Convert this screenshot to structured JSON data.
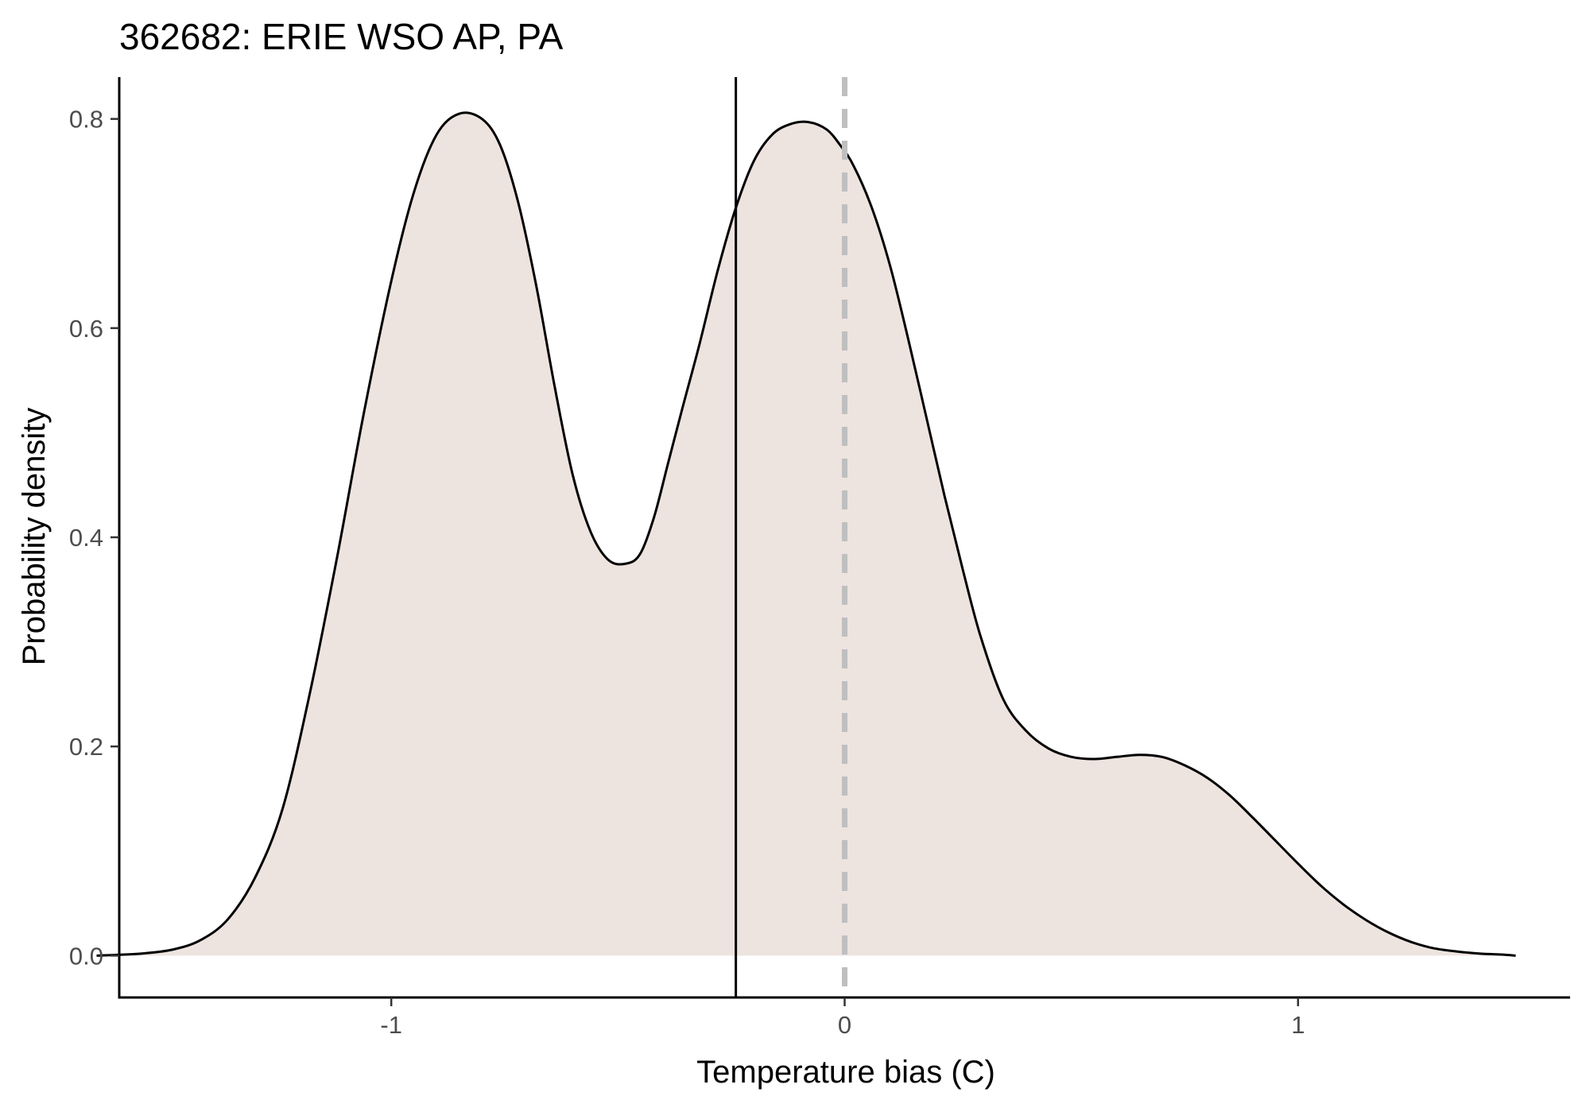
{
  "chart_data": {
    "type": "area",
    "title": "362682: ERIE WSO AP, PA",
    "xlabel": "Temperature bias (C)",
    "ylabel": "Probability density",
    "xlim": [
      -1.6,
      1.6
    ],
    "ylim": [
      -0.04,
      0.84
    ],
    "xticks": [
      -1,
      0,
      1
    ],
    "xtick_labels": [
      "-1",
      "0",
      "1"
    ],
    "yticks": [
      0.0,
      0.2,
      0.4,
      0.6,
      0.8
    ],
    "ytick_labels": [
      "0.0",
      "0.2",
      "0.4",
      "0.6",
      "0.8"
    ],
    "grid": false,
    "legend": "none",
    "series": [
      {
        "x": [
          -1.65,
          -1.55,
          -1.48,
          -1.42,
          -1.36,
          -1.3,
          -1.24,
          -1.18,
          -1.12,
          -1.06,
          -1.0,
          -0.95,
          -0.9,
          -0.85,
          -0.8,
          -0.76,
          -0.72,
          -0.68,
          -0.64,
          -0.6,
          -0.56,
          -0.52,
          -0.48,
          -0.45,
          -0.42,
          -0.39,
          -0.36,
          -0.32,
          -0.28,
          -0.24,
          -0.2,
          -0.16,
          -0.12,
          -0.08,
          -0.04,
          -0.01,
          0.02,
          0.06,
          0.1,
          0.14,
          0.18,
          0.22,
          0.26,
          0.3,
          0.35,
          0.4,
          0.45,
          0.5,
          0.55,
          0.6,
          0.65,
          0.7,
          0.75,
          0.8,
          0.85,
          0.9,
          0.95,
          1.0,
          1.05,
          1.1,
          1.15,
          1.2,
          1.25,
          1.3,
          1.35,
          1.4,
          1.45,
          1.48
        ],
        "y": [
          0.0,
          0.002,
          0.006,
          0.015,
          0.035,
          0.075,
          0.14,
          0.25,
          0.38,
          0.52,
          0.645,
          0.73,
          0.785,
          0.805,
          0.8,
          0.775,
          0.72,
          0.64,
          0.545,
          0.46,
          0.405,
          0.378,
          0.375,
          0.385,
          0.42,
          0.47,
          0.52,
          0.585,
          0.655,
          0.715,
          0.76,
          0.785,
          0.795,
          0.797,
          0.79,
          0.775,
          0.755,
          0.715,
          0.66,
          0.59,
          0.515,
          0.44,
          0.37,
          0.305,
          0.245,
          0.215,
          0.198,
          0.19,
          0.188,
          0.19,
          0.192,
          0.19,
          0.182,
          0.17,
          0.153,
          0.132,
          0.11,
          0.088,
          0.067,
          0.049,
          0.034,
          0.022,
          0.013,
          0.007,
          0.004,
          0.002,
          0.001,
          0.0
        ],
        "fill": "#ede3df",
        "stroke": "#000000"
      }
    ],
    "reference_lines": [
      {
        "axis": "x",
        "value": -0.24,
        "style": "solid",
        "color": "#000000"
      },
      {
        "axis": "x",
        "value": 0.0,
        "style": "dashed",
        "color": "#bfbfbf"
      }
    ]
  }
}
